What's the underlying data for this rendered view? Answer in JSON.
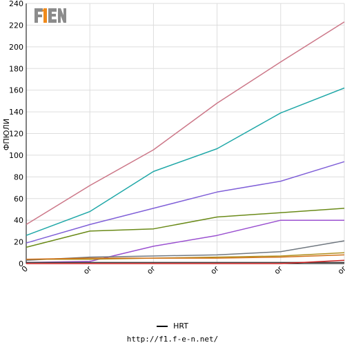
{
  "logo": {
    "text": "F1EN",
    "primary_color": "#f08a1a",
    "secondary_color": "#9a9a9a"
  },
  "chart_data": {
    "type": "line",
    "ylabel": "ФПЮЛИ",
    "xlabel": "",
    "ylim": [
      0,
      240
    ],
    "yticks": [
      0,
      20,
      40,
      60,
      80,
      100,
      120,
      140,
      160,
      180,
      200,
      220,
      240
    ],
    "categories": [
      "0",
      "or",
      "or",
      "or",
      "or",
      "or"
    ],
    "grid": true,
    "legend_position": "bottom",
    "legend": [
      {
        "name": "HRT",
        "color": "#000000"
      }
    ],
    "series": [
      {
        "name": "HRT",
        "color": "#cc7788",
        "values": [
          36,
          72,
          105,
          148,
          186,
          223
        ]
      },
      {
        "color": "#20a8a8",
        "values": [
          26,
          48,
          85,
          106,
          139,
          162
        ]
      },
      {
        "color": "#8060d8",
        "values": [
          19,
          36,
          51,
          66,
          76,
          94
        ]
      },
      {
        "color": "#6a8a18",
        "values": [
          15,
          30,
          32,
          43,
          47,
          51
        ]
      },
      {
        "color": "#9a50d0",
        "values": [
          1,
          2,
          16,
          26,
          40,
          40
        ]
      },
      {
        "color": "#707880",
        "values": [
          3,
          6,
          7,
          8,
          11,
          21
        ]
      },
      {
        "color": "#b09020",
        "values": [
          4,
          4,
          5,
          6,
          7,
          10
        ]
      },
      {
        "color": "#d07018",
        "values": [
          4,
          5,
          5,
          5,
          6,
          8
        ]
      },
      {
        "color": "#404040",
        "values": [
          1,
          1,
          1,
          1,
          1,
          1
        ]
      },
      {
        "color": "#d02020",
        "values": [
          0,
          0,
          0,
          0,
          0,
          3
        ]
      }
    ]
  },
  "footer": {
    "url": "http://f1.f-e-n.net/"
  }
}
